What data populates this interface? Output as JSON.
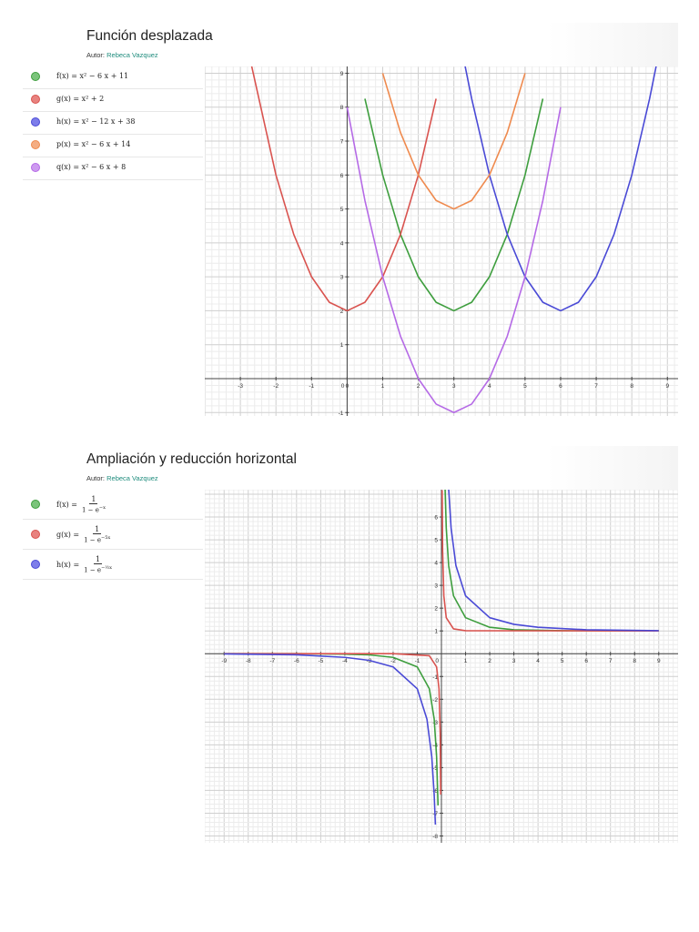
{
  "panels": [
    {
      "title": "Función desplazada",
      "author_label": "Autor:",
      "author_name": "Rebeca Vazquez",
      "equations": [
        {
          "label": "f(x) = x² − 6 x + 11",
          "color": "#3e9e3e",
          "fill": "#7bc47b"
        },
        {
          "label": "g(x) = x² + 2",
          "color": "#d9534f",
          "fill": "#e8827f"
        },
        {
          "label": "h(x) = x² − 12 x + 38",
          "color": "#4a4ad6",
          "fill": "#7d7dea"
        },
        {
          "label": "p(x) = x² − 6 x + 14",
          "color": "#ef8a4e",
          "fill": "#f4ad83"
        },
        {
          "label": "q(x) = x² − 6 x + 8",
          "color": "#b56ae6",
          "fill": "#cd9af0"
        }
      ]
    },
    {
      "title": "Ampliación y reducción horizontal",
      "author_label": "Autor:",
      "author_name": "Rebeca Vazquez",
      "equations": [
        {
          "lhs": "f(x) =",
          "num": "1",
          "den": "1 − e",
          "exp": "−x",
          "color": "#3e9e3e",
          "fill": "#7bc47b"
        },
        {
          "lhs": "g(x) =",
          "num": "1",
          "den": "1 − e",
          "exp": "−5x",
          "color": "#d9534f",
          "fill": "#e8827f"
        },
        {
          "lhs": "h(x) =",
          "num": "1",
          "den": "1 − e",
          "exp": "−½x",
          "color": "#4a4ad6",
          "fill": "#7d7dea"
        }
      ]
    }
  ],
  "chart_data": [
    {
      "type": "line",
      "title": "",
      "xlabel": "",
      "ylabel": "",
      "xlim": [
        -4,
        9.3
      ],
      "ylim": [
        -1.1,
        9.2
      ],
      "x_ticks": [
        -3,
        -2,
        -1,
        0,
        1,
        2,
        3,
        4,
        5,
        6,
        7,
        8,
        9
      ],
      "y_ticks": [
        -1,
        1,
        2,
        3,
        4,
        5,
        6,
        7,
        8,
        9
      ],
      "grid": true,
      "series": [
        {
          "name": "f",
          "color": "#3e9e3e",
          "x": [
            0.5,
            1,
            1.5,
            2,
            2.5,
            3,
            3.5,
            4,
            4.5,
            5,
            5.5
          ],
          "y": [
            8.25,
            6,
            4.25,
            3,
            2.25,
            2,
            2.25,
            3,
            4.25,
            6,
            8.25
          ]
        },
        {
          "name": "g",
          "color": "#d9534f",
          "x": [
            -2.7,
            -2,
            -1.5,
            -1,
            -0.5,
            0,
            0.5,
            1,
            1.5,
            2,
            2.5
          ],
          "y": [
            9.29,
            6,
            4.25,
            3,
            2.25,
            2,
            2.25,
            3,
            4.25,
            6,
            8.25
          ]
        },
        {
          "name": "h",
          "color": "#4a4ad6",
          "x": [
            3.3,
            3.5,
            4,
            4.5,
            5,
            5.5,
            6,
            6.5,
            7,
            7.5,
            8,
            8.5,
            8.7
          ],
          "y": [
            9.29,
            8.25,
            6,
            4.25,
            3,
            2.25,
            2,
            2.25,
            3,
            4.25,
            6,
            8.25,
            9.29
          ]
        },
        {
          "name": "p",
          "color": "#ef8a4e",
          "x": [
            1,
            1.5,
            2,
            2.5,
            3,
            3.5,
            4,
            4.5,
            5
          ],
          "y": [
            9,
            7.25,
            6,
            5.25,
            5,
            5.25,
            6,
            7.25,
            9
          ]
        },
        {
          "name": "q",
          "color": "#b56ae6",
          "x": [
            0,
            0.5,
            1,
            1.5,
            2,
            2.5,
            3,
            3.5,
            4,
            4.5,
            5,
            5.5,
            6
          ],
          "y": [
            8,
            5.25,
            3,
            1.25,
            0,
            -0.75,
            -1,
            -0.75,
            0,
            1.25,
            3,
            5.25,
            8
          ]
        }
      ]
    },
    {
      "type": "line",
      "title": "",
      "xlabel": "",
      "ylabel": "",
      "xlim": [
        -9.8,
        9.8
      ],
      "ylim": [
        -8.3,
        7.2
      ],
      "x_ticks": [
        -9,
        -8,
        -7,
        -6,
        -5,
        -4,
        -3,
        -2,
        -1,
        1,
        2,
        3,
        4,
        5,
        6,
        7,
        8,
        9
      ],
      "y_ticks": [
        -8,
        -7,
        -6,
        -5,
        -4,
        -3,
        -2,
        -1,
        1,
        2,
        3,
        4,
        5,
        6
      ],
      "grid": true,
      "series": [
        {
          "name": "f",
          "color": "#3e9e3e",
          "x": [
            -9,
            -6,
            -4,
            -3,
            -2,
            -1,
            -0.5,
            -0.3,
            -0.2,
            -0.14,
            0.14,
            0.2,
            0.3,
            0.5,
            1,
            2,
            3,
            5,
            9
          ],
          "y": [
            0,
            0,
            -0.02,
            -0.05,
            -0.16,
            -0.58,
            -1.54,
            -2.86,
            -4.52,
            -6.66,
            7.65,
            5.52,
            3.86,
            2.54,
            1.58,
            1.16,
            1.05,
            1.01,
            1
          ]
        },
        {
          "name": "g",
          "color": "#d9534f",
          "x": [
            -9,
            -2,
            -0.5,
            -0.2,
            -0.1,
            -0.05,
            -0.03,
            0.03,
            0.05,
            0.1,
            0.2,
            0.5,
            1,
            9
          ],
          "y": [
            0,
            0,
            -0.09,
            -0.58,
            -1.54,
            -3.52,
            -6.18,
            7.18,
            4.52,
            2.54,
            1.58,
            1.09,
            1.01,
            1
          ]
        },
        {
          "name": "h",
          "color": "#4a4ad6",
          "x": [
            -9,
            -6,
            -4,
            -3,
            -2,
            -1,
            -0.6,
            -0.4,
            -0.3,
            -0.25,
            0.29,
            0.4,
            0.6,
            1,
            2,
            3,
            4,
            6,
            9
          ],
          "y": [
            -0.01,
            -0.05,
            -0.16,
            -0.29,
            -0.58,
            -1.54,
            -2.87,
            -4.52,
            -6.18,
            -7.5,
            7.4,
            5.52,
            3.87,
            2.54,
            1.58,
            1.29,
            1.16,
            1.05,
            1.01
          ]
        }
      ]
    }
  ]
}
